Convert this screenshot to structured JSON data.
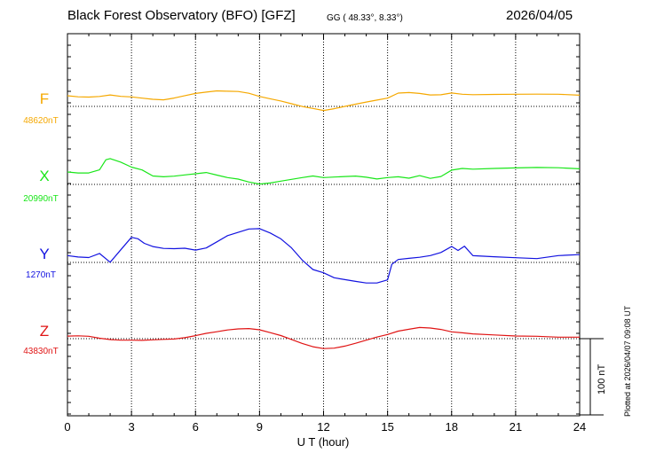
{
  "header": {
    "title": "Black Forest Observatory (BFO)  [GFZ]",
    "coords": "GG ( 48.33°,   8.33°)",
    "date": "2026/04/05"
  },
  "plotted_note": "Plotted at 2026/04/07 09:08 UT",
  "scale_bar_label": "100 nT",
  "chart_data": {
    "type": "line",
    "xlabel": "U T (hour)",
    "xlim": [
      0,
      24
    ],
    "x_ticks": [
      "0",
      "3",
      "6",
      "9",
      "12",
      "15",
      "18",
      "21",
      "24"
    ],
    "grid": true,
    "scale_bar_nT": 100,
    "series": [
      {
        "name": "F",
        "baseline_label": "48620nT",
        "baseline_nT": 48620,
        "color": "#f5a800",
        "x": [
          0,
          0.5,
          1,
          1.5,
          2,
          2.5,
          3,
          3.5,
          4,
          4.5,
          5,
          5.5,
          6,
          6.5,
          7,
          7.5,
          8,
          8.5,
          9,
          9.5,
          10,
          10.5,
          11,
          11.5,
          12,
          12.5,
          13,
          13.5,
          14,
          14.5,
          15,
          15.5,
          16,
          16.5,
          17,
          17.5,
          18,
          18.5,
          19,
          20,
          21,
          22,
          23,
          24
        ],
        "delta_nT": [
          14,
          13,
          13,
          14,
          16,
          14,
          13,
          11,
          9,
          8,
          10,
          13,
          16,
          18,
          20,
          20,
          20,
          18,
          14,
          11,
          8,
          4,
          0,
          -3,
          -6,
          -4,
          -1,
          2,
          5,
          8,
          11,
          18,
          19,
          18,
          16,
          16,
          18,
          16,
          15,
          15,
          15,
          15,
          15,
          14
        ]
      },
      {
        "name": "X",
        "baseline_label": "20990nT",
        "baseline_nT": 20990,
        "color": "#19e619",
        "x": [
          0,
          0.5,
          1,
          1.5,
          1.8,
          2,
          2.5,
          3,
          3.5,
          4,
          4.5,
          5,
          5.5,
          6,
          6.5,
          7,
          7.5,
          8,
          8.5,
          9,
          9.5,
          10,
          10.5,
          11,
          11.5,
          12,
          12.5,
          13,
          13.5,
          14,
          14.5,
          15,
          15.5,
          16,
          16.5,
          17,
          17.5,
          18,
          18.5,
          19,
          20,
          21,
          22,
          23,
          24
        ],
        "delta_nT": [
          17,
          16,
          16,
          20,
          33,
          34,
          29,
          22,
          18,
          10,
          9,
          10,
          12,
          14,
          16,
          13,
          10,
          8,
          4,
          1,
          2,
          4,
          6,
          8,
          10,
          8,
          9,
          10,
          11,
          10,
          8,
          10,
          11,
          9,
          12,
          8,
          10,
          18,
          20,
          19,
          20,
          21,
          22,
          22,
          21
        ]
      },
      {
        "name": "Y",
        "baseline_label": "1270nT",
        "baseline_nT": 1270,
        "color": "#1212e0",
        "x": [
          0,
          0.5,
          1,
          1.5,
          2,
          2.5,
          3,
          3.3,
          3.6,
          4,
          4.5,
          5,
          5.5,
          6,
          6.5,
          7,
          7.5,
          8,
          8.5,
          9,
          9.5,
          10,
          10.5,
          11,
          11.5,
          12,
          12.5,
          13,
          13.5,
          14,
          14.5,
          15,
          15.2,
          15.5,
          16,
          16.5,
          17,
          17.5,
          18,
          18.3,
          18.6,
          19,
          20,
          21,
          22,
          23,
          24
        ],
        "delta_nT": [
          10,
          8,
          7,
          12,
          0,
          16,
          32,
          30,
          24,
          20,
          18,
          18,
          19,
          17,
          20,
          28,
          36,
          40,
          44,
          44,
          38,
          30,
          18,
          2,
          -10,
          -14,
          -20,
          -22,
          -24,
          -26,
          -26,
          -22,
          -2,
          4,
          5,
          6,
          8,
          12,
          20,
          15,
          21,
          9,
          8,
          7,
          6,
          10,
          11
        ]
      },
      {
        "name": "Z",
        "baseline_label": "43830nT",
        "baseline_nT": 43830,
        "color": "#e01414",
        "x": [
          0,
          0.5,
          1,
          1.5,
          2,
          2.5,
          3,
          3.5,
          4,
          4.5,
          5,
          5.5,
          6,
          6.5,
          7,
          7.5,
          8,
          8.5,
          9,
          9.5,
          10,
          10.5,
          11,
          11.5,
          12,
          12.5,
          13,
          13.5,
          14,
          14.5,
          15,
          15.5,
          16,
          16.5,
          17,
          17.5,
          18,
          18.5,
          19,
          20,
          21,
          22,
          23,
          24
        ],
        "delta_nT": [
          4,
          4,
          3,
          0,
          -2,
          -3,
          -3,
          -3,
          -2,
          -1,
          0,
          2,
          5,
          8,
          10,
          12,
          13,
          13,
          11,
          7,
          3,
          -2,
          -7,
          -11,
          -13,
          -12,
          -9,
          -5,
          -1,
          3,
          6,
          10,
          12,
          14,
          13,
          11,
          8,
          7,
          6,
          5,
          4,
          4,
          3,
          3
        ]
      }
    ]
  }
}
